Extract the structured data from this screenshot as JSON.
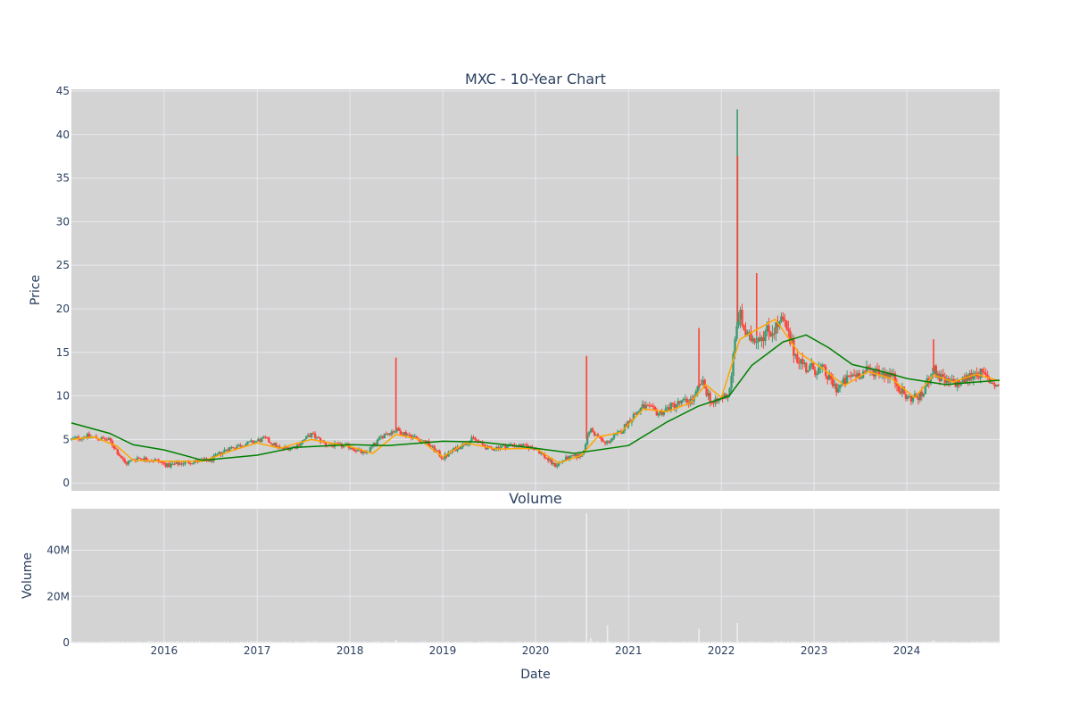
{
  "chart_data": [
    {
      "type": "candlestick",
      "title": "MXC - 10-Year Chart",
      "xlabel": "",
      "ylabel": "Price",
      "ylim": [
        -0.9,
        45.2
      ],
      "yticks": [
        0,
        5,
        10,
        15,
        20,
        25,
        30,
        35,
        40,
        45
      ],
      "xlim": [
        "2015-01-01",
        "2024-12-31"
      ],
      "grid": true,
      "colors": {
        "increasing": "#3d9970",
        "decreasing": "#ff4136",
        "ma_short": "#ffa500",
        "ma_long": "#008000",
        "plot_bg": "#d3d3d3",
        "grid": "#e8e8f0"
      },
      "price_path": [
        [
          "2015-01-01",
          5.0
        ],
        [
          "2015-03-01",
          5.4
        ],
        [
          "2015-06-01",
          4.9
        ],
        [
          "2015-08-01",
          2.2
        ],
        [
          "2015-09-15",
          2.9
        ],
        [
          "2015-12-01",
          2.6
        ],
        [
          "2016-01-15",
          2.0
        ],
        [
          "2016-04-01",
          2.4
        ],
        [
          "2016-07-01",
          2.6
        ],
        [
          "2016-09-01",
          3.9
        ],
        [
          "2016-12-01",
          4.6
        ],
        [
          "2017-02-01",
          5.1
        ],
        [
          "2017-04-01",
          3.9
        ],
        [
          "2017-06-01",
          4.2
        ],
        [
          "2017-08-01",
          5.6
        ],
        [
          "2017-10-01",
          4.4
        ],
        [
          "2018-01-01",
          4.2
        ],
        [
          "2018-03-01",
          3.3
        ],
        [
          "2018-05-15",
          5.6
        ],
        [
          "2018-07-01",
          6.1
        ],
        [
          "2018-09-01",
          5.4
        ],
        [
          "2018-11-01",
          4.6
        ],
        [
          "2019-01-01",
          2.9
        ],
        [
          "2019-03-01",
          4.1
        ],
        [
          "2019-05-01",
          5.1
        ],
        [
          "2019-07-01",
          3.9
        ],
        [
          "2019-10-01",
          4.4
        ],
        [
          "2020-01-01",
          4.0
        ],
        [
          "2020-03-15",
          2.0
        ],
        [
          "2020-05-01",
          2.8
        ],
        [
          "2020-07-01",
          3.2
        ],
        [
          "2020-08-01",
          6.2
        ],
        [
          "2020-10-01",
          4.5
        ],
        [
          "2020-12-01",
          5.9
        ],
        [
          "2021-01-15",
          7.6
        ],
        [
          "2021-03-01",
          8.8
        ],
        [
          "2021-05-01",
          8.0
        ],
        [
          "2021-07-01",
          9.0
        ],
        [
          "2021-09-15",
          9.6
        ],
        [
          "2021-10-15",
          11.6
        ],
        [
          "2021-12-01",
          9.0
        ],
        [
          "2022-02-01",
          10.4
        ],
        [
          "2022-03-10",
          19.5
        ],
        [
          "2022-04-15",
          16.5
        ],
        [
          "2022-06-01",
          17.0
        ],
        [
          "2022-07-15",
          17.5
        ],
        [
          "2022-09-01",
          18.5
        ],
        [
          "2022-10-15",
          15.0
        ],
        [
          "2022-12-01",
          13.2
        ],
        [
          "2023-02-01",
          13.0
        ],
        [
          "2023-04-01",
          10.8
        ],
        [
          "2023-06-01",
          12.4
        ],
        [
          "2023-09-01",
          13.0
        ],
        [
          "2023-11-01",
          12.4
        ],
        [
          "2024-01-01",
          9.7
        ],
        [
          "2024-03-01",
          10.0
        ],
        [
          "2024-04-10",
          13.0
        ],
        [
          "2024-06-01",
          11.5
        ],
        [
          "2024-08-01",
          11.5
        ],
        [
          "2024-10-01",
          12.8
        ],
        [
          "2024-12-31",
          11.0
        ]
      ],
      "spikes": [
        [
          "2018-07-01",
          14.4
        ],
        [
          "2020-07-20",
          14.6
        ],
        [
          "2021-10-05",
          17.8
        ],
        [
          "2022-03-05",
          42.9
        ],
        [
          "2022-03-06",
          37.5
        ],
        [
          "2022-05-20",
          24.1
        ],
        [
          "2024-04-15",
          16.5
        ]
      ],
      "series": [
        {
          "points": [
            [
              "2015-01-01",
              5.0
            ],
            [
              "2015-04-01",
              5.3
            ],
            [
              "2015-07-01",
              4.2
            ],
            [
              "2015-09-01",
              2.6
            ],
            [
              "2016-01-01",
              2.5
            ],
            [
              "2016-06-01",
              2.5
            ],
            [
              "2016-10-01",
              3.8
            ],
            [
              "2017-01-01",
              4.6
            ],
            [
              "2017-04-01",
              4.0
            ],
            [
              "2017-08-01",
              5.0
            ],
            [
              "2018-01-01",
              4.2
            ],
            [
              "2018-04-01",
              3.4
            ],
            [
              "2018-07-01",
              5.6
            ],
            [
              "2018-10-01",
              5.0
            ],
            [
              "2019-01-01",
              3.0
            ],
            [
              "2019-04-01",
              4.6
            ],
            [
              "2019-08-01",
              3.9
            ],
            [
              "2020-01-01",
              4.0
            ],
            [
              "2020-04-01",
              2.3
            ],
            [
              "2020-07-01",
              3.2
            ],
            [
              "2020-09-01",
              5.3
            ],
            [
              "2020-12-01",
              5.8
            ],
            [
              "2021-03-01",
              8.5
            ],
            [
              "2021-06-01",
              8.2
            ],
            [
              "2021-09-01",
              9.2
            ],
            [
              "2021-11-01",
              11.3
            ],
            [
              "2022-01-01",
              9.8
            ],
            [
              "2022-03-15",
              16.5
            ],
            [
              "2022-05-01",
              17.3
            ],
            [
              "2022-08-01",
              18.8
            ],
            [
              "2022-11-01",
              15.0
            ],
            [
              "2023-02-01",
              13.2
            ],
            [
              "2023-05-01",
              11.2
            ],
            [
              "2023-08-01",
              12.8
            ],
            [
              "2023-11-01",
              12.0
            ],
            [
              "2024-02-01",
              9.8
            ],
            [
              "2024-04-15",
              12.4
            ],
            [
              "2024-07-01",
              11.6
            ],
            [
              "2024-10-01",
              12.5
            ],
            [
              "2024-12-31",
              11.7
            ]
          ]
        },
        {
          "points": [
            [
              "2015-01-01",
              6.9
            ],
            [
              "2015-06-01",
              5.7
            ],
            [
              "2015-09-01",
              4.4
            ],
            [
              "2016-01-01",
              3.8
            ],
            [
              "2016-06-01",
              2.6
            ],
            [
              "2017-01-01",
              3.2
            ],
            [
              "2017-06-01",
              4.1
            ],
            [
              "2018-01-01",
              4.4
            ],
            [
              "2018-06-01",
              4.3
            ],
            [
              "2019-01-01",
              4.8
            ],
            [
              "2019-06-01",
              4.7
            ],
            [
              "2020-01-01",
              4.0
            ],
            [
              "2020-06-01",
              3.4
            ],
            [
              "2021-01-01",
              4.3
            ],
            [
              "2021-06-01",
              7.0
            ],
            [
              "2021-10-01",
              8.8
            ],
            [
              "2022-02-01",
              10.0
            ],
            [
              "2022-05-01",
              13.5
            ],
            [
              "2022-09-01",
              16.2
            ],
            [
              "2022-12-01",
              17.0
            ],
            [
              "2023-03-01",
              15.5
            ],
            [
              "2023-06-01",
              13.6
            ],
            [
              "2023-09-01",
              13.0
            ],
            [
              "2024-01-01",
              12.0
            ],
            [
              "2024-06-01",
              11.3
            ],
            [
              "2024-12-31",
              11.8
            ]
          ]
        }
      ]
    },
    {
      "type": "bar",
      "title": "Volume",
      "xlabel": "Date",
      "ylabel": "Volume",
      "ylim": [
        0,
        58000000
      ],
      "yticks": [
        {
          "value": 0,
          "label": "0"
        },
        {
          "value": 20000000,
          "label": "20M"
        },
        {
          "value": 40000000,
          "label": "40M"
        }
      ],
      "xticks": [
        "2016",
        "2017",
        "2018",
        "2019",
        "2020",
        "2021",
        "2022",
        "2023",
        "2024"
      ],
      "bar_color": "#eeeeee",
      "spikes": [
        [
          "2018-07-01",
          1200000
        ],
        [
          "2020-07-20",
          56000000
        ],
        [
          "2020-08-05",
          2000000
        ],
        [
          "2020-10-10",
          7500000
        ],
        [
          "2021-10-05",
          6000000
        ],
        [
          "2022-03-05",
          8500000
        ],
        [
          "2024-04-15",
          1000000
        ]
      ]
    }
  ]
}
